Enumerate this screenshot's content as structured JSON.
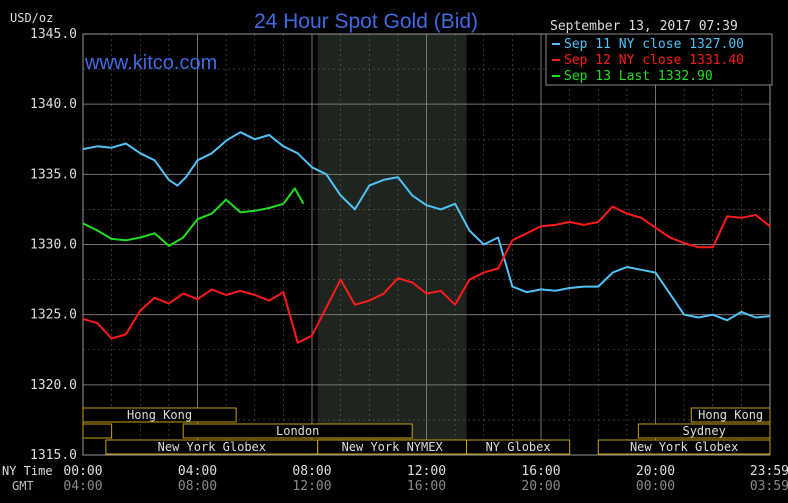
{
  "chart_data": {
    "type": "line",
    "title": "24 Hour Spot Gold (Bid)",
    "ylabel": "USD/oz",
    "watermark": "www.kitco.com",
    "timestamp": "September 13, 2017 07:39",
    "ylim": [
      1315.0,
      1345.0
    ],
    "yticks": [
      "1345.0",
      "1340.0",
      "1335.0",
      "1330.0",
      "1325.0",
      "1320.0",
      "1315.0"
    ],
    "xlim_hours": [
      0,
      24
    ],
    "xticks_ny": [
      "00:00",
      "04:00",
      "08:00",
      "12:00",
      "16:00",
      "20:00",
      "23:59"
    ],
    "xticks_gmt": [
      "04:00",
      "08:00",
      "12:00",
      "16:00",
      "20:00",
      "00:00",
      "03:59"
    ],
    "xlabel_ny": "NY Time",
    "xlabel_gmt": "GMT",
    "shaded_session_hours": [
      8.2,
      13.4
    ],
    "grid": true,
    "legend_position": "top-right",
    "colors": {
      "background": "#000000",
      "grid": "#808080",
      "shade": "#1e241e",
      "title": "#4169e1",
      "watermark": "#4169e1",
      "sep11": "#4fc3f7",
      "sep12": "#ff1a1a",
      "sep13": "#22dd22",
      "session_bar": "#c8a000",
      "text": "#dddddd"
    },
    "series": [
      {
        "name": "Sep 11 NY close 1327.00",
        "key": "sep11",
        "x": [
          0,
          0.5,
          1,
          1.5,
          2,
          2.5,
          3,
          3.3,
          3.6,
          4,
          4.5,
          5,
          5.5,
          6,
          6.5,
          7,
          7.5,
          8,
          8.5,
          9,
          9.5,
          10,
          10.5,
          11,
          11.5,
          12,
          12.5,
          13,
          13.5,
          14,
          14.5,
          15,
          15.5,
          16,
          16.5,
          17,
          17.5,
          18,
          18.5,
          19,
          19.5,
          20,
          20.5,
          21,
          21.5,
          22,
          22.5,
          23,
          23.5,
          24
        ],
        "values": [
          1336.8,
          1337.0,
          1336.9,
          1337.2,
          1336.5,
          1336.0,
          1334.6,
          1334.2,
          1334.8,
          1336.0,
          1336.5,
          1337.4,
          1338.0,
          1337.5,
          1337.8,
          1337.0,
          1336.5,
          1335.5,
          1335.0,
          1333.5,
          1332.5,
          1334.2,
          1334.6,
          1334.8,
          1333.5,
          1332.8,
          1332.5,
          1332.9,
          1331.0,
          1330.0,
          1330.5,
          1327.0,
          1326.6,
          1326.8,
          1326.7,
          1326.9,
          1327.0,
          1327.0,
          1328.0,
          1328.4,
          1328.2,
          1328.0,
          1326.5,
          1325.0,
          1324.8,
          1325.0,
          1324.6,
          1325.2,
          1324.8,
          1324.9
        ]
      },
      {
        "name": "Sep 12 NY close 1331.40",
        "key": "sep12",
        "x": [
          0,
          0.5,
          1,
          1.5,
          2,
          2.5,
          3,
          3.5,
          4,
          4.5,
          5,
          5.5,
          6,
          6.5,
          7,
          7.5,
          8,
          8.5,
          9,
          9.5,
          10,
          10.5,
          11,
          11.5,
          12,
          12.5,
          13,
          13.5,
          14,
          14.5,
          15,
          15.5,
          16,
          16.5,
          17,
          17.5,
          18,
          18.5,
          19,
          19.5,
          20,
          20.5,
          21,
          21.5,
          22,
          22.5,
          23,
          23.5,
          24
        ],
        "values": [
          1324.7,
          1324.4,
          1323.3,
          1323.6,
          1325.3,
          1326.2,
          1325.8,
          1326.5,
          1326.1,
          1326.8,
          1326.4,
          1326.7,
          1326.4,
          1326.0,
          1326.6,
          1323.0,
          1323.5,
          1325.5,
          1327.5,
          1325.7,
          1326.0,
          1326.5,
          1327.6,
          1327.3,
          1326.5,
          1326.7,
          1325.7,
          1327.5,
          1328.0,
          1328.3,
          1330.3,
          1330.8,
          1331.3,
          1331.4,
          1331.6,
          1331.4,
          1331.6,
          1332.7,
          1332.2,
          1331.9,
          1331.2,
          1330.5,
          1330.1,
          1329.8,
          1329.8,
          1332.0,
          1331.9,
          1332.1,
          1331.3
        ]
      },
      {
        "name": "Sep 13 Last 1332.90",
        "key": "sep13",
        "x": [
          0,
          0.5,
          1,
          1.5,
          2,
          2.5,
          3,
          3.5,
          4,
          4.5,
          5,
          5.5,
          6,
          6.5,
          7,
          7.4,
          7.7
        ],
        "values": [
          1331.5,
          1331.0,
          1330.4,
          1330.3,
          1330.5,
          1330.8,
          1329.9,
          1330.5,
          1331.8,
          1332.2,
          1333.2,
          1332.3,
          1332.4,
          1332.6,
          1332.9,
          1334.0,
          1332.9
        ]
      }
    ],
    "sessions": [
      {
        "label": "Hong Kong",
        "row": 0,
        "start": 0,
        "end": 5.35
      },
      {
        "label": "",
        "row": 1,
        "start": 0,
        "end": 1.0
      },
      {
        "label": "London",
        "row": 1,
        "start": 3.5,
        "end": 11.5
      },
      {
        "label": "New York Globex",
        "row": 2,
        "start": 0.8,
        "end": 8.2
      },
      {
        "label": "New York NYMEX",
        "row": 2,
        "start": 8.2,
        "end": 13.4
      },
      {
        "label": "NY Globex",
        "row": 2,
        "start": 13.4,
        "end": 17.0
      },
      {
        "label": "Hong Kong",
        "row": 0,
        "start": 21.25,
        "end": 24
      },
      {
        "label": "Sydney",
        "row": 1,
        "start": 19.4,
        "end": 24
      },
      {
        "label": "New York Globex",
        "row": 2,
        "start": 18.0,
        "end": 24
      }
    ]
  }
}
